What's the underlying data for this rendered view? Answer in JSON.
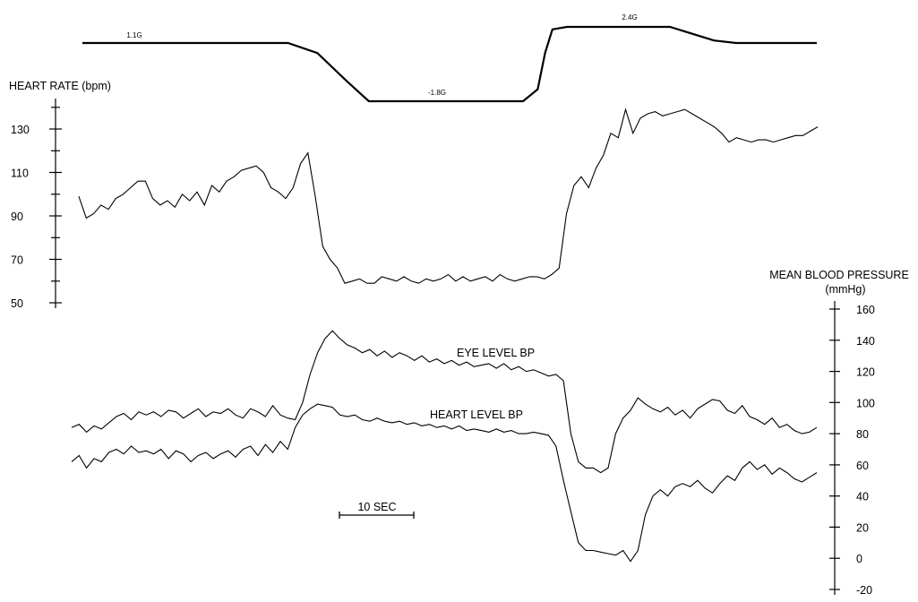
{
  "chart_data": [
    {
      "type": "line",
      "title": "",
      "series": [
        {
          "annotations": [
            "1.1G",
            "-1.8G",
            "2.4G"
          ],
          "x": [
            0,
            28,
            32,
            36,
            39,
            45,
            60,
            62,
            63,
            64,
            66,
            77,
            80,
            86,
            89,
            92,
            100
          ],
          "values": [
            1.1,
            1.1,
            0.6,
            -0.8,
            -1.8,
            -1.8,
            -1.8,
            -1.2,
            0.6,
            2.2,
            2.4,
            2.4,
            2.4,
            1.3,
            1.1,
            1.1,
            1.1
          ]
        }
      ]
    },
    {
      "type": "line",
      "ylabel": "HEART RATE (bpm)",
      "yticks": [
        "50",
        "70",
        "90",
        "110",
        "130"
      ],
      "ylim": [
        48,
        141
      ],
      "series": [
        {
          "x": [
            0,
            1,
            2,
            3,
            4,
            5,
            6,
            7,
            8,
            9,
            10,
            11,
            12,
            13,
            14,
            15,
            16,
            17,
            18,
            19,
            20,
            21,
            22,
            23,
            24,
            25,
            26,
            27,
            28,
            29,
            30,
            31,
            32,
            33,
            34,
            35,
            36,
            37,
            38,
            39,
            40,
            41,
            42,
            43,
            44,
            45,
            46,
            47,
            48,
            49,
            50,
            51,
            52,
            53,
            54,
            55,
            56,
            57,
            58,
            59,
            60,
            61,
            62,
            63,
            64,
            65,
            66,
            67,
            68,
            69,
            70,
            71,
            72,
            73,
            74,
            75,
            76,
            77,
            78,
            79,
            80,
            81,
            82,
            83,
            84,
            85,
            86,
            87,
            88,
            89,
            90,
            91,
            92,
            93,
            94,
            95,
            96,
            97,
            98,
            99,
            100
          ],
          "values": [
            99,
            89,
            91,
            95,
            93,
            98,
            100,
            103,
            106,
            106,
            98,
            95,
            97,
            94,
            100,
            97,
            101,
            95,
            104,
            101,
            106,
            108,
            111,
            112,
            113,
            110,
            103,
            101,
            98,
            103,
            114,
            119,
            99,
            76,
            70,
            66,
            59,
            60,
            61,
            59,
            59,
            62,
            61,
            60,
            62,
            60,
            59,
            61,
            60,
            61,
            63,
            60,
            62,
            60,
            61,
            62,
            60,
            63,
            61,
            60,
            61,
            62,
            62,
            61,
            63,
            66,
            91,
            104,
            108,
            103,
            112,
            118,
            128,
            126,
            139,
            128,
            135,
            137,
            138,
            136,
            137,
            138,
            139,
            137,
            135,
            133,
            131,
            128,
            124,
            126,
            125,
            124,
            125,
            125,
            124,
            125,
            126,
            127,
            127,
            129,
            131
          ]
        }
      ]
    },
    {
      "type": "line",
      "title": "MEAN BLOOD PRESSURE",
      "ylabel": "(mmHg)",
      "yticks": [
        "-20",
        "0",
        "20",
        "40",
        "60",
        "80",
        "100",
        "120",
        "140",
        "160"
      ],
      "ylim": [
        -22,
        162
      ],
      "scale_bar": "10 SEC",
      "series": [
        {
          "name": "EYE LEVEL BP",
          "x": [
            0,
            1,
            2,
            3,
            4,
            5,
            6,
            7,
            8,
            9,
            10,
            11,
            12,
            13,
            14,
            15,
            16,
            17,
            18,
            19,
            20,
            21,
            22,
            23,
            24,
            25,
            26,
            27,
            28,
            29,
            30,
            31,
            32,
            33,
            34,
            35,
            36,
            37,
            38,
            39,
            40,
            41,
            42,
            43,
            44,
            45,
            46,
            47,
            48,
            49,
            50,
            51,
            52,
            53,
            54,
            55,
            56,
            57,
            58,
            59,
            60,
            61,
            62,
            63,
            64,
            65,
            66,
            67,
            68,
            69,
            70,
            71,
            72,
            73,
            74,
            75,
            76,
            77,
            78,
            79,
            80,
            81,
            82,
            83,
            84,
            85,
            86,
            87,
            88,
            89,
            90,
            91,
            92,
            93,
            94,
            95,
            96,
            97,
            98,
            99,
            100
          ],
          "values": [
            84,
            86,
            81,
            85,
            83,
            87,
            91,
            93,
            89,
            94,
            92,
            94,
            91,
            95,
            94,
            90,
            93,
            96,
            91,
            94,
            93,
            96,
            92,
            90,
            96,
            94,
            91,
            98,
            92,
            90,
            89,
            100,
            118,
            132,
            141,
            146,
            141,
            137,
            135,
            132,
            134,
            130,
            133,
            129,
            132,
            130,
            127,
            130,
            126,
            128,
            125,
            127,
            124,
            126,
            123,
            124,
            125,
            122,
            125,
            121,
            123,
            120,
            121,
            119,
            117,
            118,
            114,
            80,
            62,
            58,
            58,
            55,
            58,
            80,
            90,
            95,
            103,
            99,
            96,
            94,
            97,
            92,
            95,
            90,
            96,
            99,
            102,
            101,
            95,
            93,
            98,
            91,
            89,
            86,
            90,
            84,
            86,
            82,
            80,
            81,
            84
          ]
        },
        {
          "name": "HEART LEVEL BP",
          "x": [
            0,
            1,
            2,
            3,
            4,
            5,
            6,
            7,
            8,
            9,
            10,
            11,
            12,
            13,
            14,
            15,
            16,
            17,
            18,
            19,
            20,
            21,
            22,
            23,
            24,
            25,
            26,
            27,
            28,
            29,
            30,
            31,
            32,
            33,
            34,
            35,
            36,
            37,
            38,
            39,
            40,
            41,
            42,
            43,
            44,
            45,
            46,
            47,
            48,
            49,
            50,
            51,
            52,
            53,
            54,
            55,
            56,
            57,
            58,
            59,
            60,
            61,
            62,
            63,
            64,
            65,
            66,
            67,
            68,
            69,
            70,
            71,
            72,
            73,
            74,
            75,
            76,
            77,
            78,
            79,
            80,
            81,
            82,
            83,
            84,
            85,
            86,
            87,
            88,
            89,
            90,
            91,
            92,
            93,
            94,
            95,
            96,
            97,
            98,
            99,
            100
          ],
          "values": [
            62,
            66,
            58,
            64,
            62,
            68,
            70,
            67,
            72,
            68,
            69,
            67,
            70,
            64,
            69,
            67,
            62,
            66,
            68,
            64,
            67,
            69,
            65,
            70,
            72,
            66,
            73,
            68,
            75,
            70,
            84,
            92,
            96,
            99,
            98,
            97,
            92,
            91,
            92,
            89,
            88,
            90,
            88,
            87,
            88,
            86,
            87,
            85,
            86,
            84,
            85,
            83,
            85,
            82,
            83,
            82,
            81,
            83,
            81,
            82,
            80,
            80,
            81,
            80,
            79,
            72,
            50,
            30,
            10,
            5,
            5,
            4,
            3,
            2,
            5,
            -2,
            5,
            28,
            40,
            44,
            40,
            46,
            48,
            46,
            50,
            45,
            42,
            48,
            53,
            50,
            58,
            62,
            57,
            60,
            54,
            58,
            55,
            51,
            49,
            52,
            55
          ]
        }
      ]
    }
  ]
}
